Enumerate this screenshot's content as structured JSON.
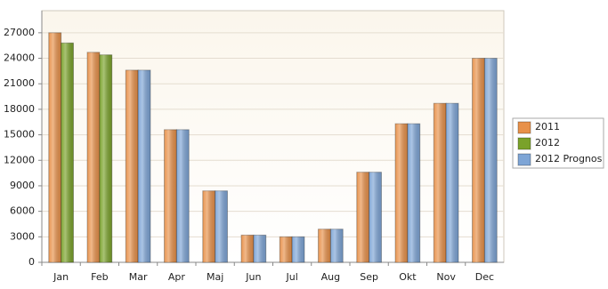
{
  "chart_data": {
    "type": "bar",
    "categories": [
      "Jan",
      "Feb",
      "Mar",
      "Apr",
      "Maj",
      "Jun",
      "Jul",
      "Aug",
      "Sep",
      "Okt",
      "Nov",
      "Dec"
    ],
    "series": [
      {
        "name": "2011",
        "color": "#e8914a",
        "values": [
          27000,
          24700,
          22600,
          15600,
          8400,
          3200,
          3000,
          3900,
          10600,
          16300,
          18700,
          24000
        ]
      },
      {
        "name": "2012",
        "color": "#7aa22a",
        "values": [
          25800,
          24400,
          null,
          null,
          null,
          null,
          null,
          null,
          null,
          null,
          null,
          null
        ]
      },
      {
        "name": "2012 Prognos",
        "color": "#7ea5d6",
        "values": [
          null,
          null,
          22600,
          15600,
          8400,
          3200,
          3000,
          3900,
          10600,
          16300,
          18700,
          24000
        ]
      }
    ],
    "ylim": [
      0,
      29600
    ],
    "yticks": [
      0,
      3000,
      6000,
      9000,
      12000,
      15000,
      18000,
      21000,
      24000,
      27000
    ],
    "grid": true,
    "legend": "right"
  }
}
